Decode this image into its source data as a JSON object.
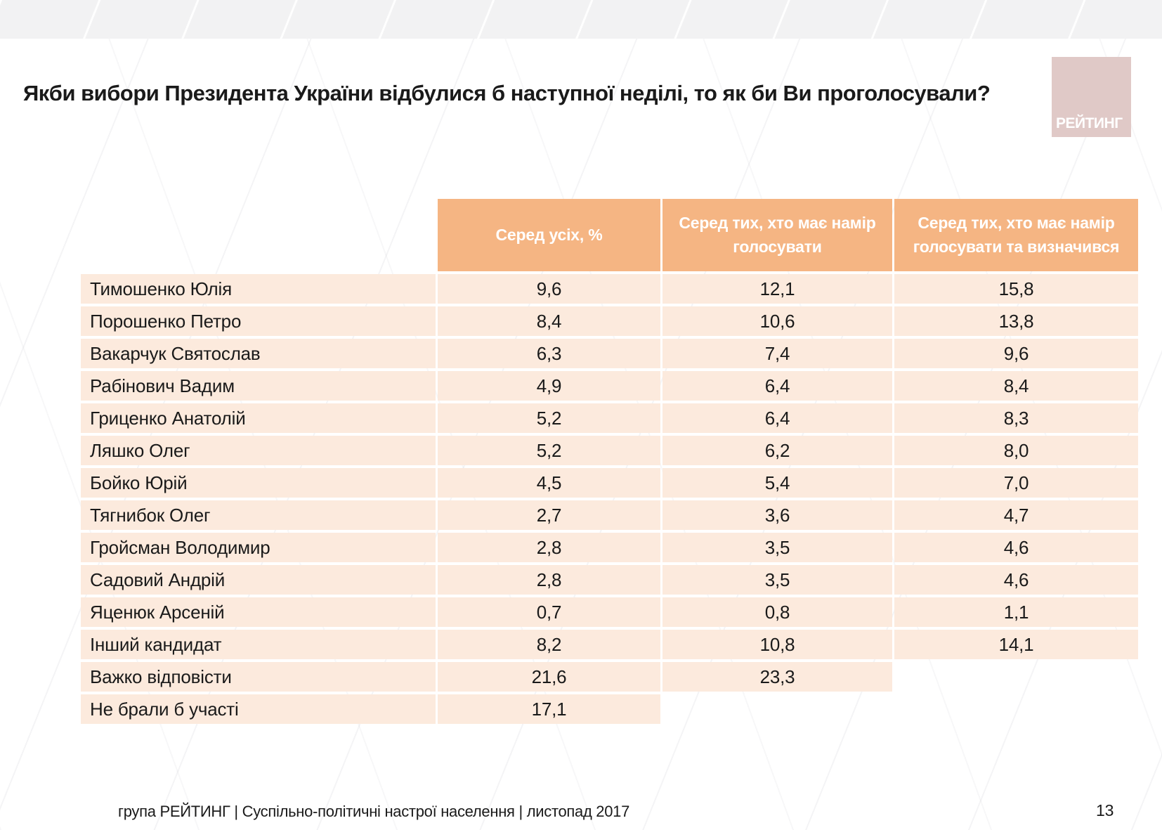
{
  "slide": {
    "title": "Якби вибори Президента України відбулися б наступної неділі, то як би Ви проголосували?",
    "logo_text": "РЕЙТИНГ",
    "footer": "група РЕЙТИНГ  | Суспільно-політичні настрої населення  |  листопад 2017",
    "page_number": "13"
  },
  "colors": {
    "header_bg": "#F5B583",
    "row_bg": "#FCEADD",
    "logo_bg": "#E0C9C7",
    "header_text": "#FFFFFF"
  },
  "table": {
    "columns": [
      "Серед усіх, %",
      "Серед тих, хто має намір голосувати",
      "Серед тих, хто має намір голосувати та визначився"
    ],
    "rows": [
      {
        "name": "Тимошенко Юлія",
        "values": [
          "9,6",
          "12,1",
          "15,8"
        ]
      },
      {
        "name": "Порошенко Петро",
        "values": [
          "8,4",
          "10,6",
          "13,8"
        ]
      },
      {
        "name": "Вакарчук Святослав",
        "values": [
          "6,3",
          "7,4",
          "9,6"
        ]
      },
      {
        "name": "Рабінович Вадим",
        "values": [
          "4,9",
          "6,4",
          "8,4"
        ]
      },
      {
        "name": "Гриценко Анатолій",
        "values": [
          "5,2",
          "6,4",
          "8,3"
        ]
      },
      {
        "name": "Ляшко Олег",
        "values": [
          "5,2",
          "6,2",
          "8,0"
        ]
      },
      {
        "name": "Бойко Юрій",
        "values": [
          "4,5",
          "5,4",
          "7,0"
        ]
      },
      {
        "name": "Тягнибок Олег",
        "values": [
          "2,7",
          "3,6",
          "4,7"
        ]
      },
      {
        "name": "Гройсман Володимир",
        "values": [
          "2,8",
          "3,5",
          "4,6"
        ]
      },
      {
        "name": "Садовий Андрій",
        "values": [
          "2,8",
          "3,5",
          "4,6"
        ]
      },
      {
        "name": "Яценюк Арсеній",
        "values": [
          "0,7",
          "0,8",
          "1,1"
        ]
      },
      {
        "name": "Інший кандидат",
        "values": [
          "8,2",
          "10,8",
          "14,1"
        ]
      },
      {
        "name": "Важко відповісти",
        "values": [
          "21,6",
          "23,3",
          null
        ]
      },
      {
        "name": "Не брали б участі",
        "values": [
          "17,1",
          null,
          null
        ]
      }
    ]
  }
}
